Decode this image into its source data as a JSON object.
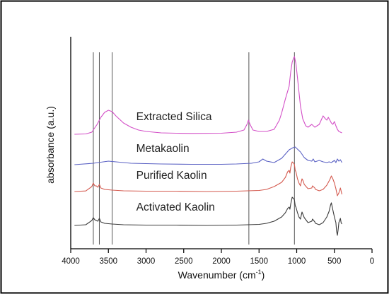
{
  "chart_data": {
    "type": "line",
    "title": "",
    "xlabel": "Wavenumber (cm",
    "xlabel_sup": "-1",
    "xlabel_suffix": ")",
    "ylabel": "absorbance (a.u.)",
    "xlim": [
      4000,
      0
    ],
    "x_reversed": true,
    "xticks": [
      4000,
      3500,
      3000,
      2500,
      2000,
      1500,
      1000,
      500,
      0
    ],
    "y_ticks_shown": false,
    "reference_lines": [
      3700,
      3620,
      3450,
      1635,
      1030
    ],
    "series": [
      {
        "name": "Extracted Silica",
        "color": "#d34fc7",
        "offset": 162,
        "points": [
          [
            3950,
            0
          ],
          [
            3800,
            0.5
          ],
          [
            3720,
            3
          ],
          [
            3650,
            14
          ],
          [
            3600,
            24
          ],
          [
            3550,
            31
          ],
          [
            3500,
            34
          ],
          [
            3450,
            32
          ],
          [
            3400,
            26
          ],
          [
            3300,
            16
          ],
          [
            3200,
            10
          ],
          [
            3100,
            6
          ],
          [
            3000,
            4
          ],
          [
            2800,
            2
          ],
          [
            2600,
            1.5
          ],
          [
            2400,
            1.2
          ],
          [
            2000,
            1.5
          ],
          [
            1800,
            3
          ],
          [
            1700,
            6
          ],
          [
            1660,
            14
          ],
          [
            1640,
            20
          ],
          [
            1620,
            14
          ],
          [
            1580,
            6
          ],
          [
            1500,
            4
          ],
          [
            1400,
            4
          ],
          [
            1300,
            7
          ],
          [
            1230,
            20
          ],
          [
            1200,
            30
          ],
          [
            1150,
            50
          ],
          [
            1100,
            68
          ],
          [
            1080,
            88
          ],
          [
            1060,
            102
          ],
          [
            1040,
            108
          ],
          [
            1030,
            110
          ],
          [
            1010,
            100
          ],
          [
            990,
            80
          ],
          [
            970,
            60
          ],
          [
            950,
            40
          ],
          [
            920,
            22
          ],
          [
            880,
            12
          ],
          [
            850,
            10
          ],
          [
            800,
            14
          ],
          [
            790,
            13
          ],
          [
            760,
            10
          ],
          [
            700,
            14
          ],
          [
            650,
            26
          ],
          [
            620,
            22
          ],
          [
            600,
            20
          ],
          [
            580,
            24
          ],
          [
            560,
            20
          ],
          [
            540,
            16
          ],
          [
            520,
            14
          ],
          [
            500,
            18
          ],
          [
            480,
            12
          ],
          [
            460,
            7
          ],
          [
            440,
            4
          ],
          [
            420,
            3
          ],
          [
            400,
            2
          ]
        ]
      },
      {
        "name": "Metakaolin",
        "color": "#5b62c4",
        "offset": 119,
        "points": [
          [
            3950,
            0
          ],
          [
            3700,
            2
          ],
          [
            3500,
            5
          ],
          [
            3400,
            4
          ],
          [
            3200,
            2
          ],
          [
            2800,
            1
          ],
          [
            2400,
            0.5
          ],
          [
            2000,
            0.5
          ],
          [
            1800,
            1
          ],
          [
            1600,
            2
          ],
          [
            1500,
            4
          ],
          [
            1450,
            8
          ],
          [
            1400,
            5
          ],
          [
            1300,
            3
          ],
          [
            1200,
            9
          ],
          [
            1150,
            15
          ],
          [
            1100,
            21
          ],
          [
            1050,
            24
          ],
          [
            1020,
            25
          ],
          [
            1000,
            23
          ],
          [
            950,
            18
          ],
          [
            900,
            10
          ],
          [
            850,
            6
          ],
          [
            800,
            5
          ],
          [
            780,
            8
          ],
          [
            760,
            4
          ],
          [
            700,
            6
          ],
          [
            650,
            4
          ],
          [
            600,
            3
          ],
          [
            570,
            4
          ],
          [
            540,
            3
          ],
          [
            500,
            6
          ],
          [
            480,
            3
          ],
          [
            460,
            8
          ],
          [
            440,
            5
          ],
          [
            420,
            7
          ],
          [
            400,
            3
          ]
        ]
      },
      {
        "name": "Purified Kaolin",
        "color": "#d45a4f",
        "offset": 81,
        "points": [
          [
            3950,
            0
          ],
          [
            3800,
            0.8
          ],
          [
            3720,
            7
          ],
          [
            3700,
            12
          ],
          [
            3680,
            8
          ],
          [
            3660,
            8
          ],
          [
            3640,
            6
          ],
          [
            3620,
            10
          ],
          [
            3600,
            5
          ],
          [
            3550,
            3
          ],
          [
            3450,
            2
          ],
          [
            3300,
            1
          ],
          [
            3000,
            0.5
          ],
          [
            2600,
            0.5
          ],
          [
            2200,
            0
          ],
          [
            1800,
            0.5
          ],
          [
            1500,
            1.5
          ],
          [
            1400,
            3
          ],
          [
            1300,
            7
          ],
          [
            1200,
            13
          ],
          [
            1150,
            20
          ],
          [
            1120,
            28
          ],
          [
            1100,
            30
          ],
          [
            1090,
            26
          ],
          [
            1080,
            34
          ],
          [
            1060,
            42
          ],
          [
            1040,
            40
          ],
          [
            1030,
            38
          ],
          [
            1020,
            30
          ],
          [
            1010,
            28
          ],
          [
            990,
            18
          ],
          [
            970,
            12
          ],
          [
            950,
            8
          ],
          [
            940,
            13
          ],
          [
            930,
            18
          ],
          [
            915,
            15
          ],
          [
            900,
            10
          ],
          [
            850,
            4
          ],
          [
            800,
            5
          ],
          [
            790,
            8
          ],
          [
            760,
            5
          ],
          [
            750,
            3
          ],
          [
            700,
            1
          ],
          [
            650,
            3
          ],
          [
            600,
            9
          ],
          [
            560,
            17
          ],
          [
            540,
            22
          ],
          [
            520,
            18
          ],
          [
            500,
            12
          ],
          [
            480,
            4
          ],
          [
            460,
            -6
          ],
          [
            440,
            -2
          ],
          [
            420,
            5
          ],
          [
            400,
            -4
          ]
        ]
      },
      {
        "name": "Activated Kaolin",
        "color": "#3a3a3a",
        "offset": 33,
        "points": [
          [
            3950,
            0
          ],
          [
            3800,
            1
          ],
          [
            3720,
            7
          ],
          [
            3700,
            11
          ],
          [
            3680,
            8
          ],
          [
            3660,
            7
          ],
          [
            3640,
            6
          ],
          [
            3620,
            10
          ],
          [
            3600,
            5
          ],
          [
            3550,
            3
          ],
          [
            3450,
            2
          ],
          [
            3300,
            1
          ],
          [
            3000,
            0.5
          ],
          [
            2600,
            0.5
          ],
          [
            2200,
            0
          ],
          [
            1800,
            0.5
          ],
          [
            1500,
            1.5
          ],
          [
            1400,
            3
          ],
          [
            1300,
            6
          ],
          [
            1200,
            12
          ],
          [
            1150,
            18
          ],
          [
            1120,
            24
          ],
          [
            1100,
            26
          ],
          [
            1090,
            23
          ],
          [
            1080,
            30
          ],
          [
            1060,
            40
          ],
          [
            1040,
            38
          ],
          [
            1030,
            36
          ],
          [
            1020,
            28
          ],
          [
            1010,
            26
          ],
          [
            990,
            18
          ],
          [
            970,
            12
          ],
          [
            950,
            9
          ],
          [
            940,
            14
          ],
          [
            930,
            19
          ],
          [
            915,
            15
          ],
          [
            900,
            11
          ],
          [
            850,
            4
          ],
          [
            800,
            6
          ],
          [
            790,
            9
          ],
          [
            760,
            5
          ],
          [
            750,
            3
          ],
          [
            700,
            1
          ],
          [
            650,
            4
          ],
          [
            600,
            12
          ],
          [
            570,
            20
          ],
          [
            550,
            29
          ],
          [
            540,
            32
          ],
          [
            520,
            22
          ],
          [
            500,
            12
          ],
          [
            480,
            4
          ],
          [
            470,
            -8
          ],
          [
            460,
            -14
          ],
          [
            450,
            -6
          ],
          [
            440,
            4
          ],
          [
            420,
            10
          ],
          [
            410,
            4
          ],
          [
            400,
            2
          ]
        ]
      }
    ],
    "series_label_positions": {
      "Extracted Silica": [
        3130,
        182
      ],
      "Metakaolin": [
        3130,
        137
      ],
      "Purified Kaolin": [
        3130,
        99
      ],
      "Activated Kaolin": [
        3130,
        54
      ]
    }
  }
}
